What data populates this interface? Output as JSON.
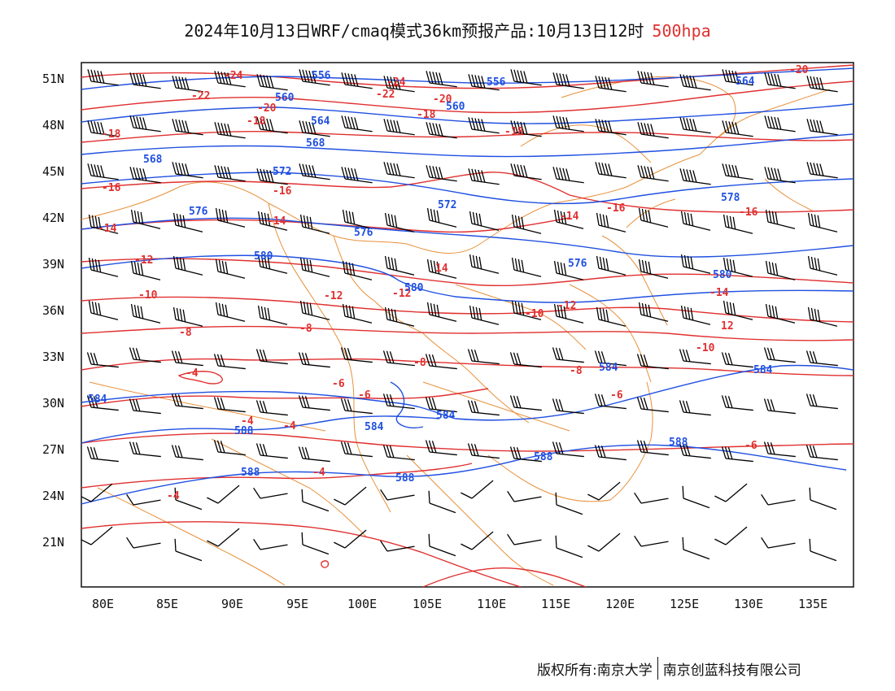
{
  "title": {
    "main": "2024年10月13日WRF/cmaq模式36km预报产品:10月13日12时",
    "level": "500hpa"
  },
  "map": {
    "lat_labels": [
      "51N",
      "48N",
      "45N",
      "42N",
      "39N",
      "36N",
      "33N",
      "30N",
      "27N",
      "24N",
      "21N"
    ],
    "lon_labels": [
      "80E",
      "85E",
      "90E",
      "95E",
      "100E",
      "105E",
      "110E",
      "115E",
      "120E",
      "125E",
      "130E",
      "135E"
    ],
    "height_labels": [
      "556",
      "556",
      "560",
      "560",
      "564",
      "564",
      "568",
      "568",
      "572",
      "572",
      "576",
      "576",
      "576",
      "578",
      "580",
      "580",
      "580",
      "584",
      "584",
      "584",
      "584",
      "584",
      "588",
      "588",
      "588",
      "588",
      "588"
    ],
    "temperature_labels": [
      "-24",
      "-24",
      "-22",
      "-22",
      "-20",
      "-20",
      "-20",
      "-18",
      "-18",
      "-18",
      "-18",
      "-16",
      "-16",
      "-16",
      "-16",
      "-14",
      "-14",
      "-14",
      "-14",
      "-12",
      "-12",
      "-12",
      "-12",
      "-10",
      "-10",
      "-10",
      "-8",
      "-8",
      "-8",
      "-8",
      "-6",
      "-6",
      "-6",
      "-6",
      "-4",
      "-4",
      "-4",
      "-4",
      "-4",
      "14",
      "12"
    ],
    "colors": {
      "height": "#2050e0",
      "temperature": "#e03030",
      "border": "#e8903a",
      "wind": "#000000"
    }
  },
  "footer": {
    "copyright": "版权所有:南京大学",
    "company": "南京创蓝科技有限公司"
  }
}
